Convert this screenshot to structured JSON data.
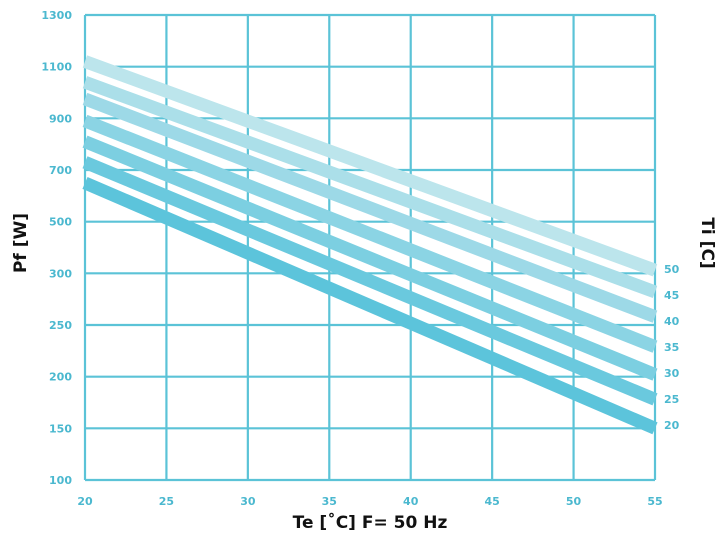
{
  "chart_data": {
    "type": "line",
    "xlabel": "Te [˚C] F= 50 Hz",
    "ylabel": "Pf [W]",
    "right_label": "Ti [C]",
    "x_ticks": [
      "20",
      "25",
      "30",
      "35",
      "40",
      "45",
      "50",
      "55"
    ],
    "y_ticks": [
      "100",
      "150",
      "200",
      "250",
      "300",
      "500",
      "700",
      "900",
      "1100",
      "1300"
    ],
    "xlim": [
      20,
      55
    ],
    "grid": true,
    "series_label_position": "right",
    "colors": {
      "grid": "#5bc3d7",
      "tick_text": "#4bb8cf",
      "series": [
        "#5cc4db",
        "#6ac9de",
        "#7ccfe1",
        "#8bd4e4",
        "#9dd9e7",
        "#abdfe9",
        "#bce5ec"
      ]
    },
    "series": [
      {
        "name": "20",
        "x": [
          20,
          55
        ],
        "y": [
          650,
          150
        ]
      },
      {
        "name": "25",
        "x": [
          20,
          55
        ],
        "y": [
          730,
          178
        ]
      },
      {
        "name": "30",
        "x": [
          20,
          55
        ],
        "y": [
          810,
          202
        ]
      },
      {
        "name": "35",
        "x": [
          20,
          55
        ],
        "y": [
          890,
          229
        ]
      },
      {
        "name": "40",
        "x": [
          20,
          55
        ],
        "y": [
          975,
          258
        ]
      },
      {
        "name": "45",
        "x": [
          20,
          55
        ],
        "y": [
          1040,
          282
        ]
      },
      {
        "name": "50",
        "x": [
          20,
          55
        ],
        "y": [
          1120,
          312
        ]
      }
    ]
  }
}
